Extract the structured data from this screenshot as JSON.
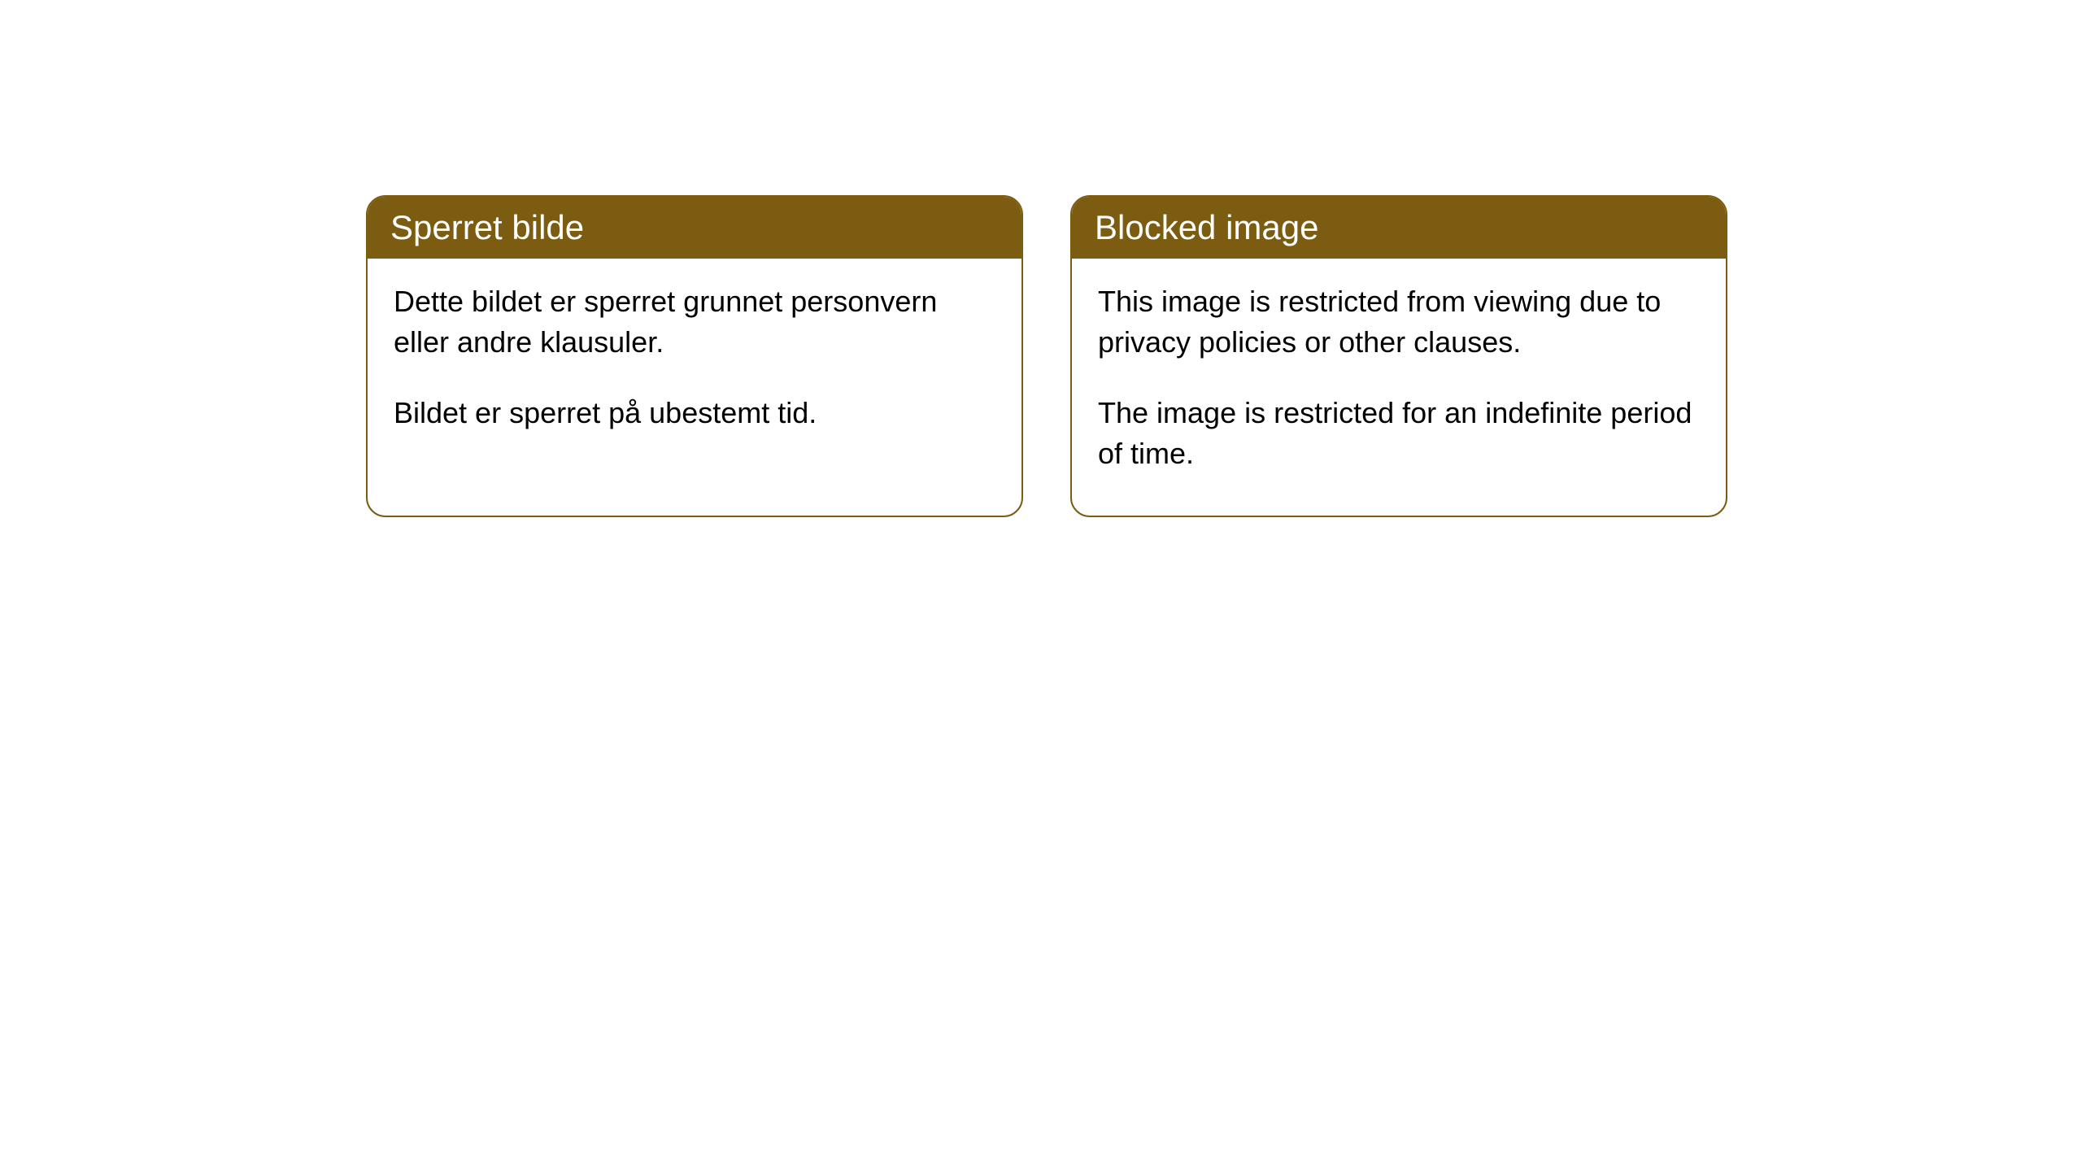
{
  "cards": [
    {
      "title": "Sperret bilde",
      "paragraph1": "Dette bildet er sperret grunnet personvern eller andre klausuler.",
      "paragraph2": "Bildet er sperret på ubestemt tid."
    },
    {
      "title": "Blocked image",
      "paragraph1": "This image is restricted from viewing due to privacy policies or other clauses.",
      "paragraph2": "The image is restricted for an indefinite period of time."
    }
  ],
  "styling": {
    "header_background": "#7b5c11",
    "header_text_color": "#ffffff",
    "card_border_color": "#7b5c11",
    "card_background": "#ffffff",
    "body_text_color": "#000000",
    "page_background": "#ffffff",
    "border_radius": 24,
    "header_fontsize": 42,
    "body_fontsize": 36
  }
}
